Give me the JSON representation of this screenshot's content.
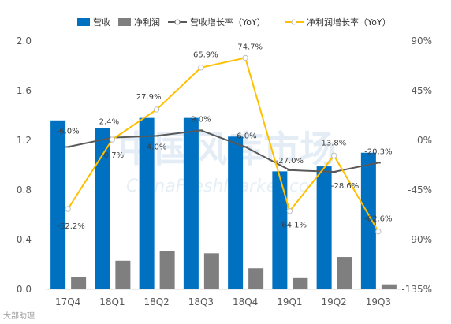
{
  "chart_data": {
    "type": "bar",
    "categories": [
      "17Q4",
      "18Q1",
      "18Q2",
      "18Q3",
      "18Q4",
      "19Q1",
      "19Q2",
      "19Q3"
    ],
    "series": [
      {
        "name": "营收",
        "kind": "bar",
        "axis": "left",
        "color": "#0070C0",
        "values": [
          1.36,
          1.3,
          1.38,
          1.38,
          1.23,
          0.95,
          0.99,
          1.1
        ]
      },
      {
        "name": "净利润",
        "kind": "bar",
        "axis": "left",
        "color": "#7F7F7F",
        "values": [
          0.1,
          0.23,
          0.31,
          0.29,
          0.17,
          0.09,
          0.26,
          0.04
        ]
      },
      {
        "name": "营收增长率（YoY）",
        "kind": "line",
        "axis": "right",
        "color": "#595959",
        "values": [
          -6.0,
          2.4,
          4.0,
          9.0,
          -6.0,
          -27.0,
          -28.6,
          -20.3
        ],
        "labels": [
          "-6.0%",
          "2.4%",
          "4.0%",
          "9.0%",
          "-6.0%",
          "-27.0%",
          "-28.6%",
          "-20.3%"
        ]
      },
      {
        "name": "净利润增长率（YoY）",
        "kind": "line",
        "axis": "right",
        "color": "#FFC000",
        "values": [
          -62.2,
          0.7,
          27.9,
          65.9,
          74.7,
          -64.1,
          -13.8,
          -82.6
        ],
        "labels": [
          "-62.2%",
          "0.7%",
          "27.9%",
          "65.9%",
          "74.7%",
          "-64.1%",
          "-13.8%",
          "-82.6%"
        ]
      }
    ],
    "left_axis": {
      "ylim": [
        0,
        2.0
      ],
      "ticks": [
        "0.0",
        "0.4",
        "0.8",
        "1.2",
        "1.6",
        "2.0"
      ],
      "tick_values": [
        0,
        0.4,
        0.8,
        1.2,
        1.6,
        2.0
      ]
    },
    "right_axis": {
      "ylim": [
        -135,
        90
      ],
      "ticks": [
        "-135%",
        "-90%",
        "-45%",
        "0%",
        "45%",
        "90%"
      ],
      "tick_values": [
        -135,
        -90,
        -45,
        0,
        45,
        90
      ]
    },
    "legend_position": "top",
    "grid": false
  },
  "watermark": {
    "cn": "中国风库市场",
    "en": "ChinaFreshMarket.co"
  },
  "source_mark": "大部助理"
}
